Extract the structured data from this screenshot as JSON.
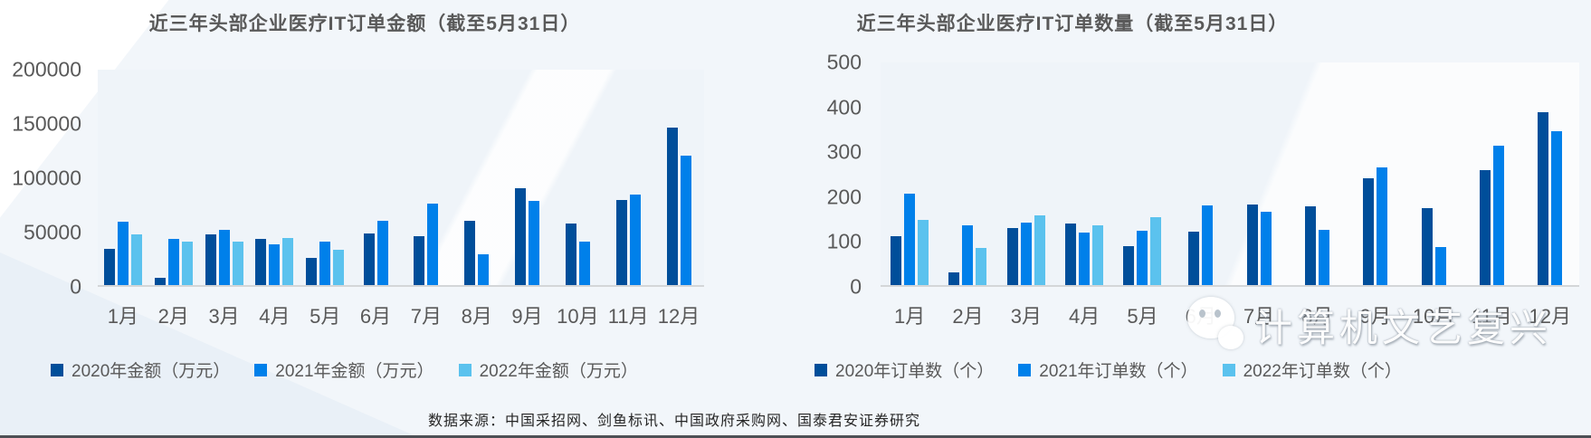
{
  "page": {
    "source_note": "数据来源：中国采招网、剑鱼标讯、中国政府采购网、国泰君安证券研究",
    "watermark_text": "计算机文艺复兴"
  },
  "colors": {
    "series_2020": "#004e9a",
    "series_2021": "#0080ea",
    "series_2022": "#5bc2ee",
    "axis_line": "#d4d6d8",
    "label_text": "#595959"
  },
  "chart_data": [
    {
      "type": "bar",
      "title": "近三年头部企业医疗IT订单金额（截至5月31日）",
      "categories": [
        "1月",
        "2月",
        "3月",
        "4月",
        "5月",
        "6月",
        "7月",
        "8月",
        "9月",
        "10月",
        "11月",
        "12月"
      ],
      "series": [
        {
          "name": "2020年金额（万元）",
          "color": "#004e9a",
          "values": [
            34000,
            7000,
            47000,
            43000,
            25000,
            48000,
            45000,
            60000,
            90000,
            57000,
            79000,
            146000
          ]
        },
        {
          "name": "2021年金额（万元）",
          "color": "#0080ea",
          "values": [
            59000,
            43000,
            51000,
            38000,
            40000,
            60000,
            76000,
            29000,
            78000,
            40000,
            84000,
            120000
          ]
        },
        {
          "name": "2022年金额（万元）",
          "color": "#5bc2ee",
          "values": [
            47000,
            40000,
            40000,
            44000,
            33000,
            null,
            null,
            null,
            null,
            null,
            null,
            null
          ]
        }
      ],
      "ylim": [
        0,
        200000
      ],
      "yticks": [
        0,
        50000,
        100000,
        150000,
        200000
      ],
      "grid": false,
      "legend_position": "bottom"
    },
    {
      "type": "bar",
      "title": "近三年头部企业医疗IT订单数量（截至5月31日）",
      "categories": [
        "1月",
        "2月",
        "3月",
        "4月",
        "5月",
        "6月",
        "7月",
        "8月",
        "9月",
        "10月",
        "11月",
        "12月"
      ],
      "series": [
        {
          "name": "2020年订单数（个）",
          "color": "#004e9a",
          "values": [
            110,
            28,
            128,
            139,
            87,
            119,
            181,
            177,
            240,
            173,
            258,
            389
          ]
        },
        {
          "name": "2021年订单数（个）",
          "color": "#0080ea",
          "values": [
            206,
            134,
            141,
            117,
            121,
            179,
            164,
            123,
            264,
            86,
            314,
            345
          ]
        },
        {
          "name": "2022年订单数（个）",
          "color": "#5bc2ee",
          "values": [
            147,
            83,
            156,
            135,
            153,
            null,
            null,
            null,
            null,
            null,
            null,
            null
          ]
        }
      ],
      "ylim": [
        0,
        500
      ],
      "yticks": [
        0,
        100,
        200,
        300,
        400,
        500
      ],
      "grid": false,
      "legend_position": "bottom"
    }
  ]
}
